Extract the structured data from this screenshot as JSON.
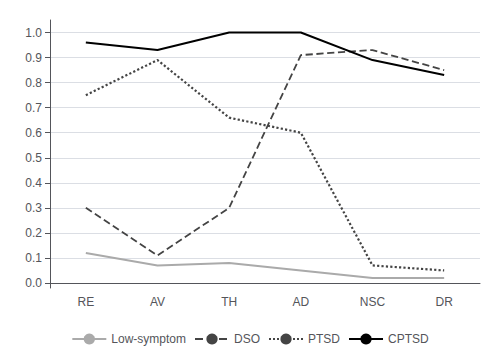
{
  "chart_data": {
    "type": "line",
    "categories": [
      "RE",
      "AV",
      "TH",
      "AD",
      "NSC",
      "DR"
    ],
    "series": [
      {
        "name": "Low-symptom",
        "color": "#aaaaaa",
        "line_style": "solid",
        "values": [
          0.12,
          0.07,
          0.08,
          0.05,
          0.02,
          0.02
        ]
      },
      {
        "name": "DSO",
        "color": "#444444",
        "line_style": "dashed",
        "values": [
          0.3,
          0.11,
          0.3,
          0.91,
          0.93,
          0.85
        ]
      },
      {
        "name": "PTSD",
        "color": "#444444",
        "line_style": "dotted",
        "values": [
          0.75,
          0.89,
          0.66,
          0.6,
          0.07,
          0.05
        ]
      },
      {
        "name": "CPTSD",
        "color": "#000000",
        "line_style": "solid",
        "values": [
          0.96,
          0.93,
          1.0,
          1.0,
          0.89,
          0.83
        ]
      }
    ],
    "ylim": [
      -0.02,
      1.05
    ],
    "yticks": [
      {
        "value": 0.0,
        "label": "0.0"
      },
      0.1,
      0.2,
      0.3,
      0.4,
      0.5,
      0.6,
      0.7,
      0.8,
      0.9,
      {
        "value": 1.0,
        "label": "1.0"
      }
    ],
    "grid": true,
    "legend": "bottom"
  }
}
